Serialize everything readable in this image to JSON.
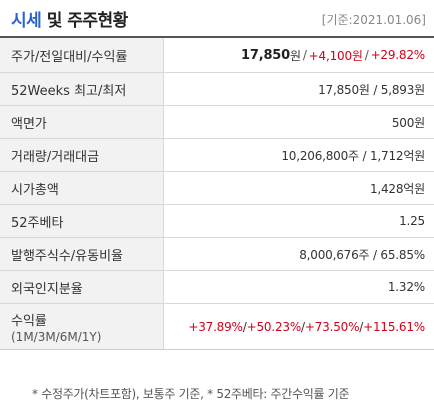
{
  "header": {
    "title_part1": "시세",
    "title_part2": " 및 주주현황",
    "base_date": "[기준:2021.01.06]"
  },
  "rows": {
    "price": {
      "label": "주가/전일대비/수익률",
      "price": "17,850",
      "price_unit": "원",
      "sep1": "/",
      "change": "+4,100원",
      "sep2": "/",
      "rate": "+29.82%"
    },
    "week52": {
      "label": "52Weeks 최고/최저",
      "value": "17,850원 / 5,893원"
    },
    "par_value": {
      "label": "액면가",
      "value": "500원"
    },
    "volume": {
      "label": "거래량/거래대금",
      "value": "10,206,800주 / 1,712억원"
    },
    "market_cap": {
      "label": "시가총액",
      "value": "1,428억원"
    },
    "beta": {
      "label": "52주베타",
      "value": "1.25"
    },
    "shares": {
      "label": "발행주식수/유동비율",
      "value": "8,000,676주 / 65.85%"
    },
    "foreign": {
      "label": "외국인지분율",
      "value": "1.32%"
    },
    "returns": {
      "label": "수익률",
      "sublabel": "(1M/3M/6M/1Y)",
      "r1m": "+37.89%",
      "r3m": "+50.23%",
      "r6m": "+73.50%",
      "r1y": "+115.61%",
      "sep": "/ "
    }
  },
  "footnote": "* 수정주가(차트포함), 보통주 기준, * 52주베타: 주간수익률 기준",
  "colors": {
    "title_blue": "#2a64c8",
    "up_red": "#d0021b",
    "label_bg": "#f2f2f2"
  }
}
